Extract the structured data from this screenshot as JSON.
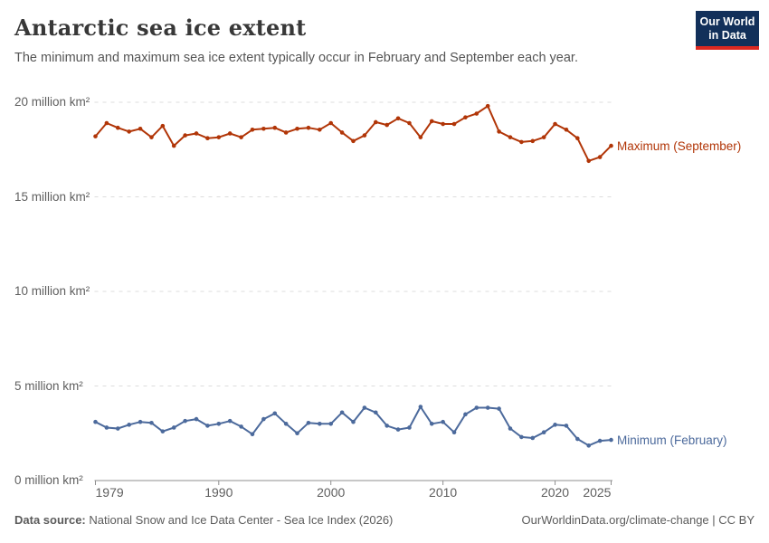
{
  "header": {
    "title": "Antarctic sea ice extent",
    "subtitle": "The minimum and maximum sea ice extent typically occur in February and September each year.",
    "logo": {
      "line1": "Our World",
      "line2": "in Data",
      "bg_color": "#12305a",
      "strip_color": "#dc2820"
    }
  },
  "chart_data": {
    "type": "line",
    "title": "Antarctic sea ice extent",
    "xlabel": "",
    "ylabel": "million km²",
    "xlim": [
      1979,
      2025
    ],
    "ylim": [
      0,
      20
    ],
    "grid": "horizontal-dashed",
    "legend_position": "line-end-labels",
    "xticks": [
      1979,
      1990,
      2000,
      2010,
      2020,
      2025
    ],
    "yticks": [
      {
        "value": 0,
        "label": "0 million km²"
      },
      {
        "value": 5,
        "label": "5 million km²"
      },
      {
        "value": 10,
        "label": "10 million km²"
      },
      {
        "value": 15,
        "label": "15 million km²"
      },
      {
        "value": 20,
        "label": "20 million km²"
      }
    ],
    "x": [
      1979,
      1980,
      1981,
      1982,
      1983,
      1984,
      1985,
      1986,
      1987,
      1988,
      1989,
      1990,
      1991,
      1992,
      1993,
      1994,
      1995,
      1996,
      1997,
      1998,
      1999,
      2000,
      2001,
      2002,
      2003,
      2004,
      2005,
      2006,
      2007,
      2008,
      2009,
      2010,
      2011,
      2012,
      2013,
      2014,
      2015,
      2016,
      2017,
      2018,
      2019,
      2020,
      2021,
      2022,
      2023,
      2024,
      2025
    ],
    "series": [
      {
        "name": "Maximum (September)",
        "color": "#b13507",
        "values": [
          18.2,
          18.9,
          18.65,
          18.45,
          18.6,
          18.15,
          18.75,
          17.7,
          18.25,
          18.35,
          18.1,
          18.15,
          18.35,
          18.15,
          18.55,
          18.6,
          18.65,
          18.4,
          18.6,
          18.65,
          18.55,
          18.9,
          18.4,
          17.95,
          18.25,
          18.95,
          18.8,
          19.15,
          18.9,
          18.15,
          19.0,
          18.85,
          18.85,
          19.2,
          19.4,
          19.8,
          18.45,
          18.15,
          17.9,
          17.95,
          18.15,
          18.85,
          18.55,
          18.1,
          16.9,
          17.1,
          17.7
        ]
      },
      {
        "name": "Minimum (February)",
        "color": "#4c6a9c",
        "values": [
          3.1,
          2.8,
          2.75,
          2.95,
          3.1,
          3.05,
          2.6,
          2.8,
          3.15,
          3.25,
          2.9,
          3.0,
          3.15,
          2.85,
          2.45,
          3.25,
          3.55,
          3.0,
          2.5,
          3.05,
          3.0,
          3.0,
          3.6,
          3.1,
          3.85,
          3.6,
          2.9,
          2.7,
          2.8,
          3.9,
          3.0,
          3.1,
          2.55,
          3.5,
          3.85,
          3.85,
          3.8,
          2.75,
          2.3,
          2.25,
          2.55,
          2.95,
          2.9,
          2.2,
          1.85,
          2.1,
          2.15
        ]
      }
    ]
  },
  "footer": {
    "source_label": "Data source:",
    "source_text": " National Snow and Ice Data Center - Sea Ice Index (2026)",
    "attribution": "OurWorldinData.org/climate-change | CC BY"
  }
}
